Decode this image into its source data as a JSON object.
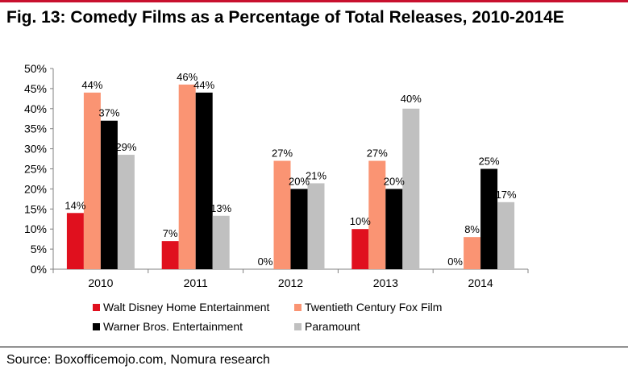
{
  "title": "Fig. 13: Comedy Films as a Percentage of Total Releases, 2010-2014E",
  "source": "Source: Boxofficemojo.com, Nomura research",
  "colors": {
    "accent_rule": "#c8102e",
    "axis": "#808080"
  },
  "chart_data": {
    "type": "bar",
    "title": "Fig. 13: Comedy Films as a Percentage of Total Releases, 2010-2014E",
    "xlabel": "",
    "ylabel": "",
    "categories": [
      "2010",
      "2011",
      "2012",
      "2013",
      "2014"
    ],
    "ylim": [
      0,
      50
    ],
    "yticks": [
      "0%",
      "5%",
      "10%",
      "15%",
      "20%",
      "25%",
      "30%",
      "35%",
      "40%",
      "45%",
      "50%"
    ],
    "grid": false,
    "legend_position": "bottom",
    "series": [
      {
        "name": "Walt Disney Home Entertainment",
        "color": "#e0101e",
        "values": [
          14,
          7,
          0,
          10,
          0
        ],
        "labels": [
          "14%",
          "7%",
          "0%",
          "10%",
          "0%"
        ]
      },
      {
        "name": "Twentieth Century Fox Film",
        "color": "#fa9473",
        "values": [
          44,
          46,
          27,
          27,
          8
        ],
        "labels": [
          "44%",
          "46%",
          "27%",
          "27%",
          "8%"
        ]
      },
      {
        "name": "Warner Bros. Entertainment",
        "color": "#000000",
        "values": [
          37,
          44,
          20,
          20,
          25
        ],
        "labels": [
          "37%",
          "44%",
          "20%",
          "20%",
          "25%"
        ]
      },
      {
        "name": "Paramount",
        "color": "#c0c0c0",
        "values": [
          28.5,
          13.3,
          21.4,
          40,
          16.7
        ],
        "labels": [
          "29%",
          "13%",
          "21%",
          "",
          "17%"
        ]
      }
    ],
    "extra_labels": [
      "40%"
    ]
  }
}
